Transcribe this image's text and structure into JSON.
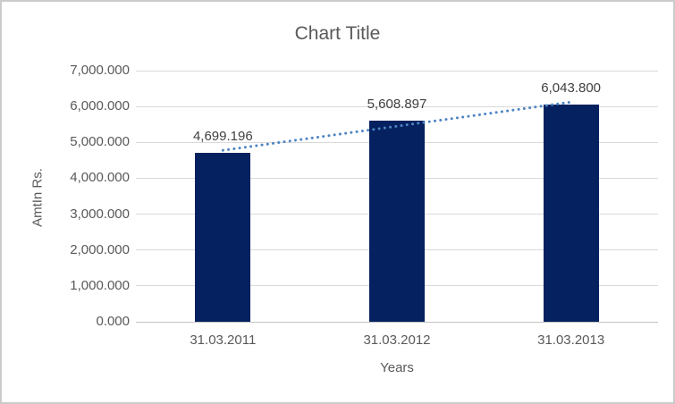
{
  "chart_data": {
    "type": "bar",
    "title": "Chart Title",
    "xlabel": "Years",
    "ylabel": "AmtIn Rs.",
    "categories": [
      "31.03.2011",
      "31.03.2012",
      "31.03.2013"
    ],
    "values": [
      4699.196,
      5608.897,
      6043.8
    ],
    "data_labels": [
      "4,699.196",
      "5,608.897",
      "6,043.800"
    ],
    "ylim": [
      0,
      7000
    ],
    "y_tick_values": [
      0,
      1000,
      2000,
      3000,
      4000,
      5000,
      6000,
      7000
    ],
    "y_tick_labels": [
      "0.000",
      "1,000.000",
      "2,000.000",
      "3,000.000",
      "4,000.000",
      "5,000.000",
      "6,000.000",
      "7,000.000"
    ],
    "grid": true,
    "legend": "none",
    "trendline": {
      "type": "linear",
      "style": "dotted"
    },
    "colors": {
      "bar": "#05215f",
      "trendline": "#4d84c4",
      "gridline": "#d9d9d9",
      "axis_line": "#c3c3c3",
      "text": "#595959",
      "data_label_text": "#404040",
      "frame_border": "#cbcbcb",
      "background": "#ffffff"
    }
  }
}
